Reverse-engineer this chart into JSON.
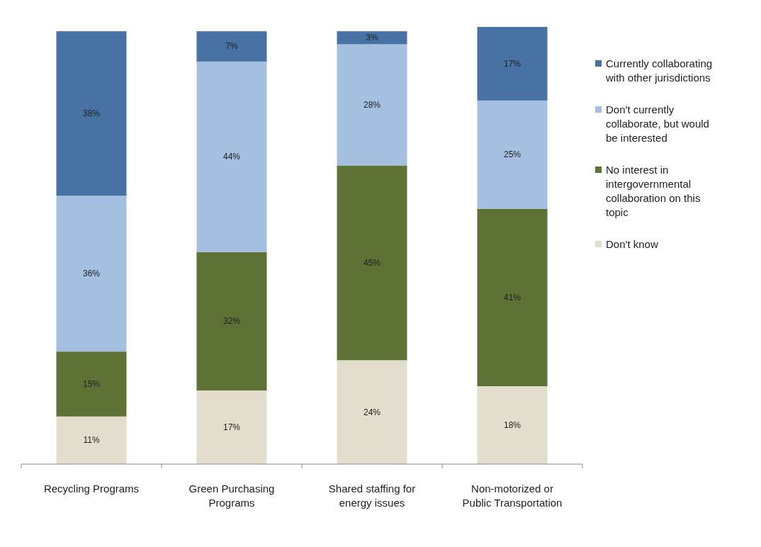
{
  "chart_data": {
    "type": "bar",
    "stacked": true,
    "legend": "right",
    "categories": [
      "Recycling Programs",
      "Green Purchasing Programs",
      "Shared staffing for energy issues",
      "Non-motorized or Public Transportation"
    ],
    "series": [
      {
        "name": "Don't know",
        "color": "#e3ddce",
        "values": [
          11,
          17,
          24,
          18
        ],
        "value_labels": [
          "11%",
          "17%",
          "24%",
          "18%"
        ]
      },
      {
        "name": "No interest in intergovernmental collaboration on this topic",
        "color": "#5e7236",
        "values": [
          15,
          32,
          45,
          41
        ],
        "value_labels": [
          "15%",
          "32%",
          "45%",
          "41%"
        ]
      },
      {
        "name": "Don't currently collaborate, but would be interested",
        "color": "#a4bfe0",
        "values": [
          36,
          44,
          28,
          25
        ],
        "value_labels": [
          "36%",
          "44%",
          "28%",
          "25%"
        ]
      },
      {
        "name": "Currently collaborating with other jurisdictions",
        "color": "#4872a4",
        "values": [
          38,
          7,
          3,
          17
        ],
        "value_labels": [
          "38%",
          "7%",
          "3%",
          "17%"
        ]
      }
    ]
  }
}
